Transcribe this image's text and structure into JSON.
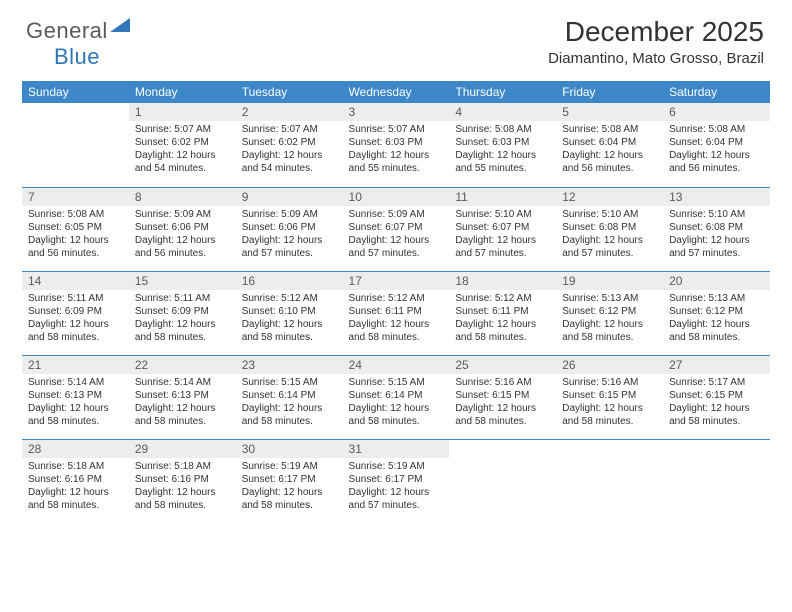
{
  "logo": {
    "text1": "General",
    "text2": "Blue"
  },
  "header": {
    "month": "December 2025",
    "location": "Diamantino, Mato Grosso, Brazil"
  },
  "colors": {
    "header_bg": "#3b87c8",
    "header_text": "#ffffff",
    "daynum_bg": "#eceded",
    "row_border": "#3b87c8",
    "logo_gray": "#5a5a5a",
    "logo_blue": "#2f77b8"
  },
  "weekdays": [
    "Sunday",
    "Monday",
    "Tuesday",
    "Wednesday",
    "Thursday",
    "Friday",
    "Saturday"
  ],
  "weeks": [
    [
      null,
      {
        "n": "1",
        "sr": "Sunrise: 5:07 AM",
        "ss": "Sunset: 6:02 PM",
        "d1": "Daylight: 12 hours",
        "d2": "and 54 minutes."
      },
      {
        "n": "2",
        "sr": "Sunrise: 5:07 AM",
        "ss": "Sunset: 6:02 PM",
        "d1": "Daylight: 12 hours",
        "d2": "and 54 minutes."
      },
      {
        "n": "3",
        "sr": "Sunrise: 5:07 AM",
        "ss": "Sunset: 6:03 PM",
        "d1": "Daylight: 12 hours",
        "d2": "and 55 minutes."
      },
      {
        "n": "4",
        "sr": "Sunrise: 5:08 AM",
        "ss": "Sunset: 6:03 PM",
        "d1": "Daylight: 12 hours",
        "d2": "and 55 minutes."
      },
      {
        "n": "5",
        "sr": "Sunrise: 5:08 AM",
        "ss": "Sunset: 6:04 PM",
        "d1": "Daylight: 12 hours",
        "d2": "and 56 minutes."
      },
      {
        "n": "6",
        "sr": "Sunrise: 5:08 AM",
        "ss": "Sunset: 6:04 PM",
        "d1": "Daylight: 12 hours",
        "d2": "and 56 minutes."
      }
    ],
    [
      {
        "n": "7",
        "sr": "Sunrise: 5:08 AM",
        "ss": "Sunset: 6:05 PM",
        "d1": "Daylight: 12 hours",
        "d2": "and 56 minutes."
      },
      {
        "n": "8",
        "sr": "Sunrise: 5:09 AM",
        "ss": "Sunset: 6:06 PM",
        "d1": "Daylight: 12 hours",
        "d2": "and 56 minutes."
      },
      {
        "n": "9",
        "sr": "Sunrise: 5:09 AM",
        "ss": "Sunset: 6:06 PM",
        "d1": "Daylight: 12 hours",
        "d2": "and 57 minutes."
      },
      {
        "n": "10",
        "sr": "Sunrise: 5:09 AM",
        "ss": "Sunset: 6:07 PM",
        "d1": "Daylight: 12 hours",
        "d2": "and 57 minutes."
      },
      {
        "n": "11",
        "sr": "Sunrise: 5:10 AM",
        "ss": "Sunset: 6:07 PM",
        "d1": "Daylight: 12 hours",
        "d2": "and 57 minutes."
      },
      {
        "n": "12",
        "sr": "Sunrise: 5:10 AM",
        "ss": "Sunset: 6:08 PM",
        "d1": "Daylight: 12 hours",
        "d2": "and 57 minutes."
      },
      {
        "n": "13",
        "sr": "Sunrise: 5:10 AM",
        "ss": "Sunset: 6:08 PM",
        "d1": "Daylight: 12 hours",
        "d2": "and 57 minutes."
      }
    ],
    [
      {
        "n": "14",
        "sr": "Sunrise: 5:11 AM",
        "ss": "Sunset: 6:09 PM",
        "d1": "Daylight: 12 hours",
        "d2": "and 58 minutes."
      },
      {
        "n": "15",
        "sr": "Sunrise: 5:11 AM",
        "ss": "Sunset: 6:09 PM",
        "d1": "Daylight: 12 hours",
        "d2": "and 58 minutes."
      },
      {
        "n": "16",
        "sr": "Sunrise: 5:12 AM",
        "ss": "Sunset: 6:10 PM",
        "d1": "Daylight: 12 hours",
        "d2": "and 58 minutes."
      },
      {
        "n": "17",
        "sr": "Sunrise: 5:12 AM",
        "ss": "Sunset: 6:11 PM",
        "d1": "Daylight: 12 hours",
        "d2": "and 58 minutes."
      },
      {
        "n": "18",
        "sr": "Sunrise: 5:12 AM",
        "ss": "Sunset: 6:11 PM",
        "d1": "Daylight: 12 hours",
        "d2": "and 58 minutes."
      },
      {
        "n": "19",
        "sr": "Sunrise: 5:13 AM",
        "ss": "Sunset: 6:12 PM",
        "d1": "Daylight: 12 hours",
        "d2": "and 58 minutes."
      },
      {
        "n": "20",
        "sr": "Sunrise: 5:13 AM",
        "ss": "Sunset: 6:12 PM",
        "d1": "Daylight: 12 hours",
        "d2": "and 58 minutes."
      }
    ],
    [
      {
        "n": "21",
        "sr": "Sunrise: 5:14 AM",
        "ss": "Sunset: 6:13 PM",
        "d1": "Daylight: 12 hours",
        "d2": "and 58 minutes."
      },
      {
        "n": "22",
        "sr": "Sunrise: 5:14 AM",
        "ss": "Sunset: 6:13 PM",
        "d1": "Daylight: 12 hours",
        "d2": "and 58 minutes."
      },
      {
        "n": "23",
        "sr": "Sunrise: 5:15 AM",
        "ss": "Sunset: 6:14 PM",
        "d1": "Daylight: 12 hours",
        "d2": "and 58 minutes."
      },
      {
        "n": "24",
        "sr": "Sunrise: 5:15 AM",
        "ss": "Sunset: 6:14 PM",
        "d1": "Daylight: 12 hours",
        "d2": "and 58 minutes."
      },
      {
        "n": "25",
        "sr": "Sunrise: 5:16 AM",
        "ss": "Sunset: 6:15 PM",
        "d1": "Daylight: 12 hours",
        "d2": "and 58 minutes."
      },
      {
        "n": "26",
        "sr": "Sunrise: 5:16 AM",
        "ss": "Sunset: 6:15 PM",
        "d1": "Daylight: 12 hours",
        "d2": "and 58 minutes."
      },
      {
        "n": "27",
        "sr": "Sunrise: 5:17 AM",
        "ss": "Sunset: 6:15 PM",
        "d1": "Daylight: 12 hours",
        "d2": "and 58 minutes."
      }
    ],
    [
      {
        "n": "28",
        "sr": "Sunrise: 5:18 AM",
        "ss": "Sunset: 6:16 PM",
        "d1": "Daylight: 12 hours",
        "d2": "and 58 minutes."
      },
      {
        "n": "29",
        "sr": "Sunrise: 5:18 AM",
        "ss": "Sunset: 6:16 PM",
        "d1": "Daylight: 12 hours",
        "d2": "and 58 minutes."
      },
      {
        "n": "30",
        "sr": "Sunrise: 5:19 AM",
        "ss": "Sunset: 6:17 PM",
        "d1": "Daylight: 12 hours",
        "d2": "and 58 minutes."
      },
      {
        "n": "31",
        "sr": "Sunrise: 5:19 AM",
        "ss": "Sunset: 6:17 PM",
        "d1": "Daylight: 12 hours",
        "d2": "and 57 minutes."
      },
      null,
      null,
      null
    ]
  ]
}
